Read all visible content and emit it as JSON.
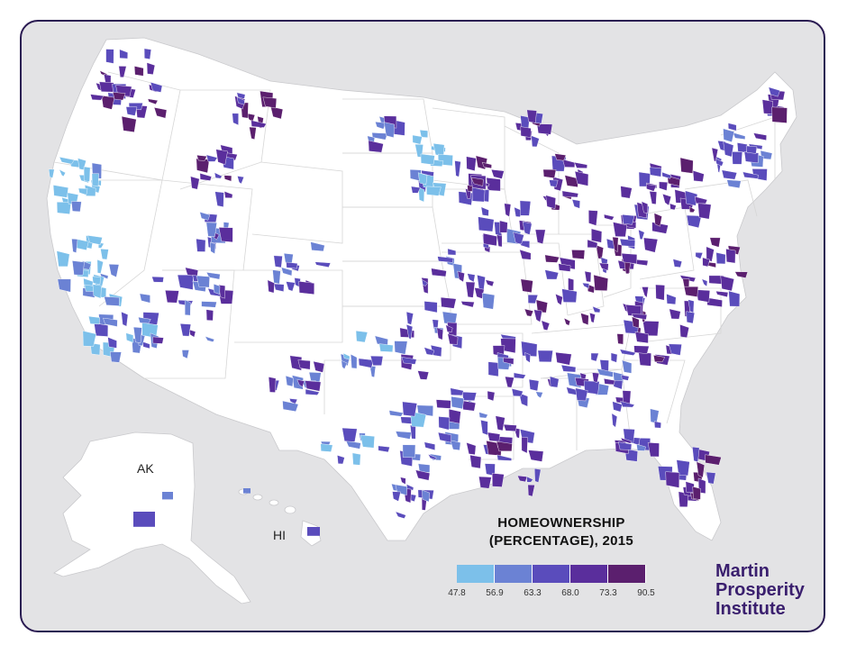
{
  "title_line1": "HOMEOWNERSHIP",
  "title_line2": "(PERCENTAGE), 2015",
  "labels": {
    "alaska": "AK",
    "hawaii": "HI"
  },
  "legend": {
    "colors": [
      "#7cc0ea",
      "#6b82d4",
      "#5a4cbc",
      "#5a2e9c",
      "#5b1f6e"
    ],
    "ticks": [
      "47.8",
      "56.9",
      "63.3",
      "68.0",
      "73.3",
      "90.5"
    ]
  },
  "logo": {
    "line1": "Martin",
    "line2": "Prosperity",
    "line3": "Institute"
  }
}
